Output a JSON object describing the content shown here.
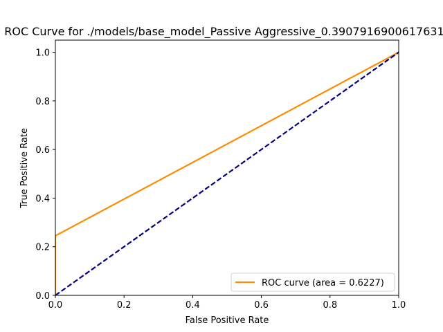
{
  "chart_data": {
    "type": "line",
    "title": "ROC Curve for ./models/base_model_Passive Aggressive_0.3907916900617631_",
    "xlabel": "False Positive Rate",
    "ylabel": "True Positive Rate",
    "xlim": [
      0,
      1
    ],
    "ylim": [
      0,
      1.05
    ],
    "xticks": [
      "0.0",
      "0.2",
      "0.4",
      "0.6",
      "0.8",
      "1.0"
    ],
    "yticks": [
      "0.0",
      "0.2",
      "0.4",
      "0.6",
      "0.8",
      "1.0"
    ],
    "grid": false,
    "legend_position": "lower right",
    "series": [
      {
        "name": "ROC curve (area = 0.6227)",
        "color": "#ff8c00",
        "style": "solid",
        "x": [
          0,
          0,
          1
        ],
        "y": [
          0,
          0.245,
          1
        ]
      },
      {
        "color": "#000080",
        "style": "dashed",
        "x": [
          0,
          1
        ],
        "y": [
          0,
          1
        ]
      }
    ]
  }
}
